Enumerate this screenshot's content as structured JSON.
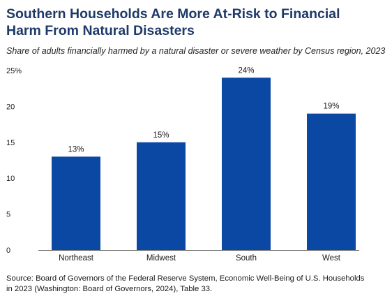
{
  "title": "Southern Households Are More At-Risk to Financial Harm From Natural Disasters",
  "subtitle": "Share of adults financially harmed by a natural disaster or severe weather by Census region, 2023",
  "source": "Source: Board of Governors of the Federal Reserve System, Economic Well-Being of U.S. Households in 2023 (Washington: Board of Governors, 2024), Table 33.",
  "colors": {
    "bar": "#0a48a4",
    "baseline": "#555555",
    "text": "#1a1a1a",
    "title": "#1f3a68"
  },
  "chart_data": {
    "type": "bar",
    "categories": [
      "Northeast",
      "Midwest",
      "South",
      "West"
    ],
    "values": [
      13,
      15,
      24,
      19
    ],
    "data_labels": [
      "13%",
      "15%",
      "24%",
      "19%"
    ],
    "ylim": [
      0,
      25
    ],
    "yticks": [
      0,
      5,
      10,
      15,
      20,
      25
    ],
    "ytick_labels": [
      "0",
      "5",
      "10",
      "15",
      "20",
      "25%"
    ],
    "xlabel": "",
    "ylabel": "",
    "grid": false,
    "legend": "none"
  }
}
